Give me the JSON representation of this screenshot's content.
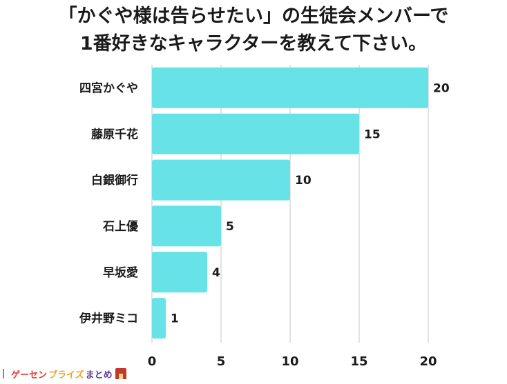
{
  "title_line1": "「かぐや様は告らせたい」の生徒会メンバーで",
  "title_line2": "1番好きなキャラクターを教えて下さい。",
  "logo": {
    "part1": "ゲーセン",
    "part2": "プライズ",
    "part3": "まとめ"
  },
  "colors": {
    "bar": "#67e3e8",
    "grid": "#d9d9d9",
    "text": "#1a1a1a"
  },
  "chart_data": {
    "type": "bar",
    "orientation": "horizontal",
    "title": "「かぐや様は告らせたい」の生徒会メンバーで1番好きなキャラクターを教えて下さい。",
    "categories": [
      "四宮かぐや",
      "藤原千花",
      "白銀御行",
      "石上優",
      "早坂愛",
      "伊井野ミコ"
    ],
    "values": [
      20,
      15,
      10,
      5,
      4,
      1
    ],
    "value_labels": [
      "20",
      "15",
      "10",
      "5",
      "4",
      "1"
    ],
    "xlim": [
      0,
      20
    ],
    "xticks": [
      0,
      5,
      10,
      15,
      20
    ],
    "xtick_labels": [
      "0",
      "5",
      "10",
      "15",
      "20"
    ],
    "grid": true,
    "legend": "none"
  }
}
